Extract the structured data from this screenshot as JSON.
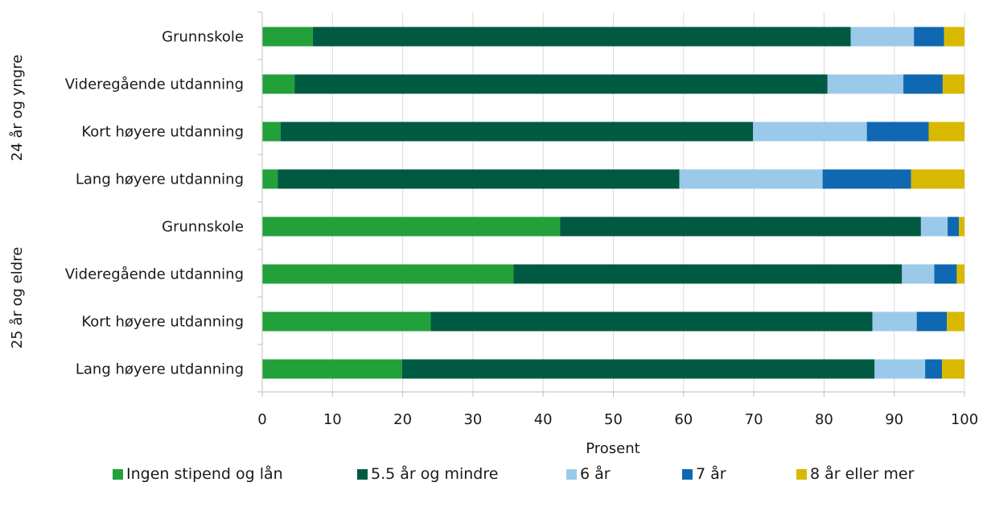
{
  "chart_data": {
    "type": "bar",
    "orientation": "horizontal",
    "stacked": true,
    "groups": [
      {
        "label": "24 år og yngre",
        "categories": [
          "Grunnskole",
          "Videregående utdanning",
          "Kort høyere utdanning",
          "Lang høyere utdanning"
        ]
      },
      {
        "label": "25 år og eldre",
        "categories": [
          "Grunnskole",
          "Videregående utdanning",
          "Kort høyere utdanning",
          "Lang høyere utdanning"
        ]
      }
    ],
    "series": [
      {
        "name": "Ingen stipend og lån",
        "color": "#22a03a",
        "values": [
          7.2,
          4.6,
          2.6,
          2.2,
          42.4,
          35.8,
          24.0,
          19.9
        ]
      },
      {
        "name": "5.5 år og mindre",
        "color": "#005a42",
        "values": [
          76.6,
          75.9,
          67.3,
          57.2,
          51.4,
          55.3,
          62.9,
          67.3
        ]
      },
      {
        "name": "6 år",
        "color": "#9bc9ea",
        "values": [
          9.0,
          10.8,
          16.2,
          20.4,
          3.8,
          4.6,
          6.3,
          7.2
        ]
      },
      {
        "name": "7 år",
        "color": "#0f68b1",
        "values": [
          4.3,
          5.6,
          8.8,
          12.6,
          1.6,
          3.2,
          4.3,
          2.4
        ]
      },
      {
        "name": "8 år eller mer",
        "color": "#d9b900",
        "values": [
          2.9,
          3.1,
          5.1,
          7.6,
          0.8,
          1.1,
          2.5,
          3.2
        ]
      }
    ],
    "xlabel": "Prosent",
    "xlim": [
      0,
      100
    ],
    "xticks": [
      "0",
      "10",
      "20",
      "30",
      "40",
      "50",
      "60",
      "70",
      "80",
      "90",
      "100"
    ],
    "grid": "vertical",
    "legend_position": "bottom"
  }
}
